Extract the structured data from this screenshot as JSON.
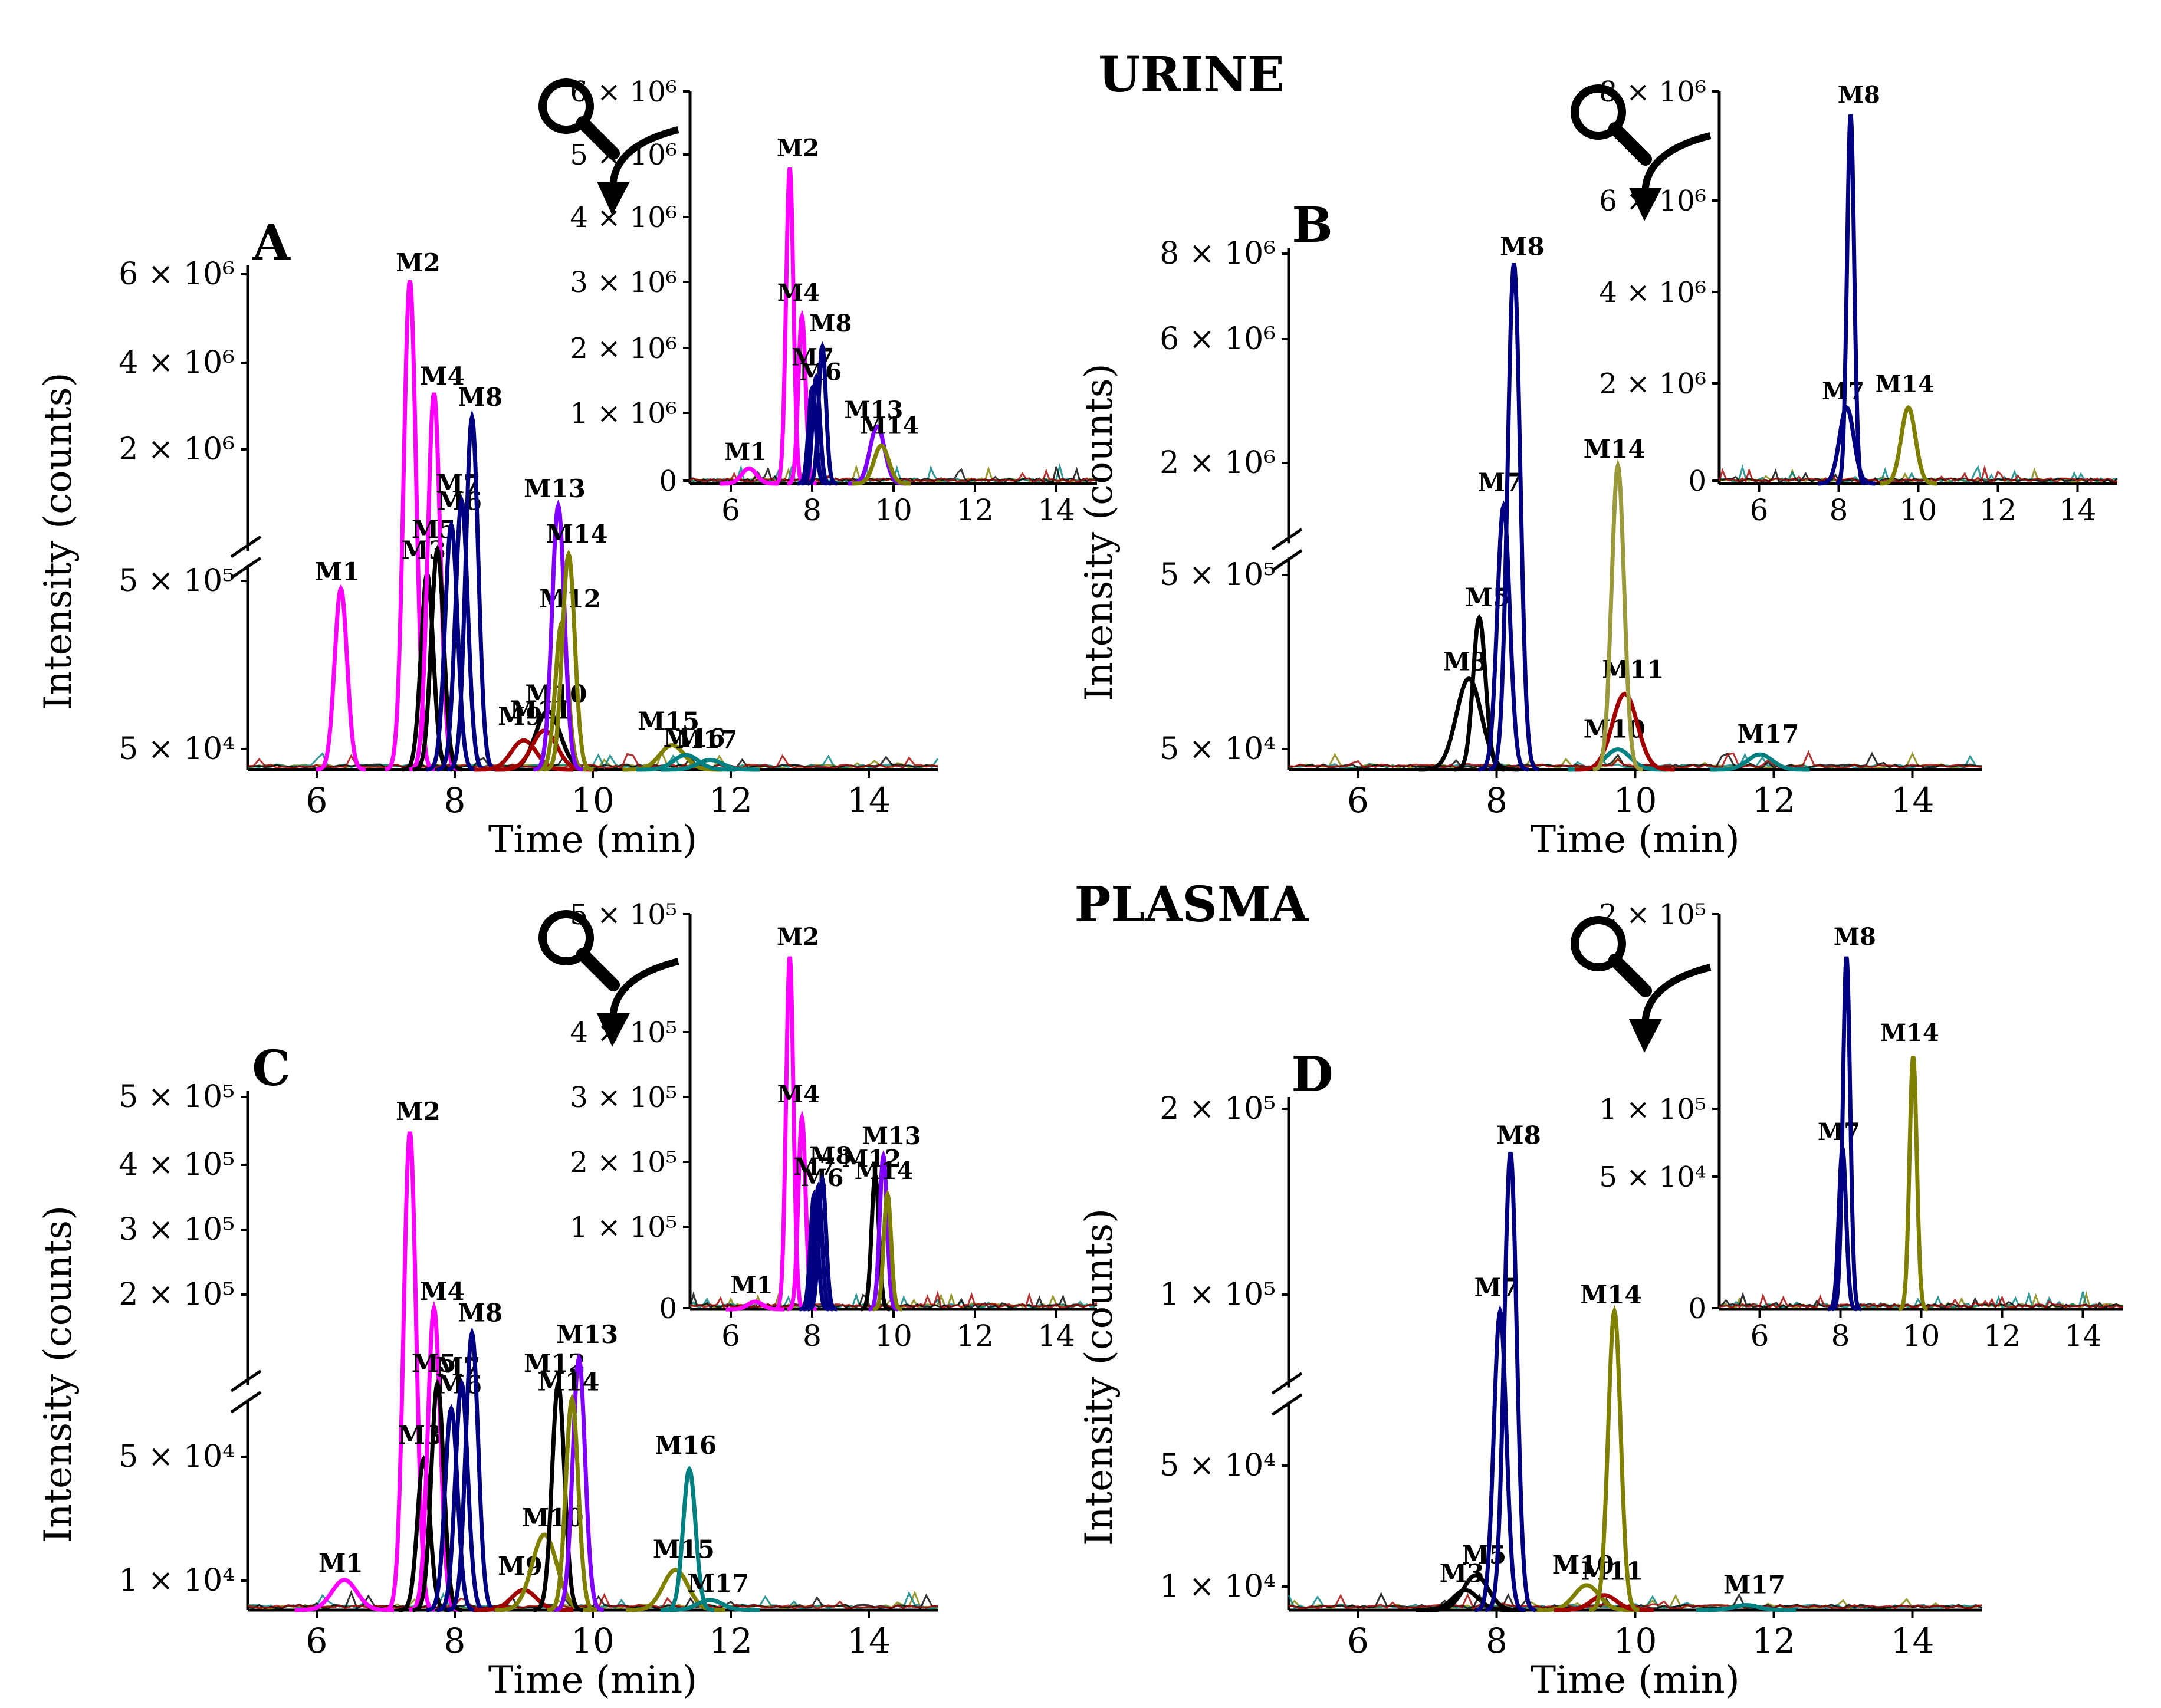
{
  "figure": {
    "section_titles": [
      "URINE",
      "PLASMA"
    ],
    "x_label": "Time (min)",
    "y_label": "Intensity (counts)",
    "colors": {
      "magenta": "#ff00ff",
      "navy": "#000080",
      "black": "#000000",
      "teal": "#008080",
      "purple": "#7f00ff",
      "olive": "#808000",
      "olive_light": "#9a9a3c",
      "maroon": "#a00000",
      "green": "#2e8b57"
    },
    "icons": [
      "magnifier-icon",
      "curved-arrow-icon"
    ]
  },
  "chart_data": [
    {
      "id": "A",
      "type": "line",
      "panel_label": "A",
      "xlabel": "Time (min)",
      "ylabel": "Intensity (counts)",
      "xlim": [
        5,
        15
      ],
      "x_ticks": [
        "6",
        "8",
        "10",
        "12",
        "14"
      ],
      "y_ticks": [
        "5 × 10⁴",
        "5 × 10⁵",
        "2 × 10⁶",
        "4 × 10⁶",
        "6 × 10⁶"
      ],
      "axis_break": true,
      "peaks": [
        {
          "label": "M1",
          "rt": 6.35,
          "color": "magenta",
          "height": 0.37
        },
        {
          "label": "M2",
          "rt": 7.35,
          "color": "magenta",
          "height": 1.0
        },
        {
          "label": "M3",
          "rt": 7.6,
          "color": "black",
          "height": 0.4
        },
        {
          "label": "M4",
          "rt": 7.7,
          "color": "magenta",
          "height": 0.77
        },
        {
          "label": "M5",
          "rt": 7.75,
          "color": "black",
          "height": 0.45
        },
        {
          "label": "M6",
          "rt": 7.95,
          "color": "navy",
          "height": 0.5
        },
        {
          "label": "M7",
          "rt": 8.1,
          "color": "navy",
          "height": 0.55
        },
        {
          "label": "M8",
          "rt": 8.25,
          "color": "navy",
          "height": 0.72
        },
        {
          "label": "M9",
          "rt": 9.0,
          "color": "maroon",
          "height": 0.06
        },
        {
          "label": "M10",
          "rt": 9.35,
          "color": "black",
          "height": 0.12
        },
        {
          "label": "M11",
          "rt": 9.3,
          "color": "maroon",
          "height": 0.08
        },
        {
          "label": "M12",
          "rt": 9.55,
          "color": "olive",
          "height": 0.3
        },
        {
          "label": "M13",
          "rt": 9.5,
          "color": "purple",
          "height": 0.54
        },
        {
          "label": "M14",
          "rt": 9.65,
          "color": "olive",
          "height": 0.44
        },
        {
          "label": "M15",
          "rt": 11.15,
          "color": "olive",
          "height": 0.05
        },
        {
          "label": "M16",
          "rt": 11.35,
          "color": "teal",
          "height": 0.03
        },
        {
          "label": "M17",
          "rt": 11.7,
          "color": "teal",
          "height": 0.02
        }
      ]
    },
    {
      "id": "A-inset",
      "type": "line",
      "xlim": [
        5,
        15
      ],
      "x_ticks": [
        "6",
        "8",
        "10",
        "12",
        "14"
      ],
      "y_ticks": [
        "0",
        "1 × 10⁶",
        "2 × 10⁶",
        "3 × 10⁶",
        "4 × 10⁶",
        "5 × 10⁶",
        "6 × 10⁶"
      ],
      "peaks": [
        {
          "label": "M1",
          "rt": 6.45,
          "color": "magenta",
          "height": 0.04
        },
        {
          "label": "M2",
          "rt": 7.45,
          "color": "magenta",
          "height": 0.83
        },
        {
          "label": "M4",
          "rt": 7.75,
          "color": "magenta",
          "height": 0.44
        },
        {
          "label": "M6",
          "rt": 8.0,
          "color": "navy",
          "height": 0.25
        },
        {
          "label": "M7",
          "rt": 8.1,
          "color": "navy",
          "height": 0.28
        },
        {
          "label": "M8",
          "rt": 8.25,
          "color": "navy",
          "height": 0.36
        },
        {
          "label": "M13",
          "rt": 9.6,
          "color": "purple",
          "height": 0.15
        },
        {
          "label": "M14",
          "rt": 9.7,
          "color": "olive",
          "height": 0.1
        }
      ]
    },
    {
      "id": "B",
      "type": "line",
      "panel_label": "B",
      "xlabel": "Time (min)",
      "ylabel": "Intensity (counts)",
      "xlim": [
        5,
        15
      ],
      "x_ticks": [
        "6",
        "8",
        "10",
        "12",
        "14"
      ],
      "y_ticks": [
        "5 × 10⁴",
        "5 × 10⁵",
        "2 × 10⁶",
        "6 × 10⁶",
        "8 × 10⁶"
      ],
      "axis_break": true,
      "peaks": [
        {
          "label": "M3",
          "rt": 7.6,
          "color": "black",
          "height": 0.18
        },
        {
          "label": "M5",
          "rt": 7.75,
          "color": "black",
          "height": 0.3
        },
        {
          "label": "M7",
          "rt": 8.1,
          "color": "navy",
          "height": 0.52
        },
        {
          "label": "M8",
          "rt": 8.25,
          "color": "navy",
          "height": 1.0
        },
        {
          "label": "M10",
          "rt": 9.75,
          "color": "teal",
          "height": 0.04
        },
        {
          "label": "M11",
          "rt": 9.85,
          "color": "maroon",
          "height": 0.15
        },
        {
          "label": "M14",
          "rt": 9.75,
          "color": "olive_light",
          "height": 0.6
        },
        {
          "label": "M17",
          "rt": 11.8,
          "color": "teal",
          "height": 0.03
        }
      ]
    },
    {
      "id": "B-inset",
      "type": "line",
      "xlim": [
        5,
        15
      ],
      "x_ticks": [
        "6",
        "8",
        "10",
        "12",
        "14"
      ],
      "y_ticks": [
        "0",
        "2 × 10⁶",
        "4 × 10⁶",
        "6 × 10⁶",
        "8 × 10⁶"
      ],
      "peaks": [
        {
          "label": "M7",
          "rt": 8.2,
          "color": "navy",
          "height": 0.2
        },
        {
          "label": "M8",
          "rt": 8.3,
          "color": "navy",
          "height": 0.97
        },
        {
          "label": "M14",
          "rt": 9.75,
          "color": "olive",
          "height": 0.2
        }
      ]
    },
    {
      "id": "C",
      "type": "line",
      "panel_label": "C",
      "xlabel": "Time (min)",
      "ylabel": "Intensity (counts)",
      "xlim": [
        5,
        15
      ],
      "x_ticks": [
        "6",
        "8",
        "10",
        "12",
        "14"
      ],
      "y_ticks": [
        "1 × 10⁴",
        "5 × 10⁴",
        "2 × 10⁵",
        "3 × 10⁵",
        "4 × 10⁵",
        "5 × 10⁵"
      ],
      "axis_break": true,
      "peaks": [
        {
          "label": "M1",
          "rt": 6.4,
          "color": "magenta",
          "height": 0.06
        },
        {
          "label": "M2",
          "rt": 7.35,
          "color": "magenta",
          "height": 0.95
        },
        {
          "label": "M3",
          "rt": 7.55,
          "color": "black",
          "height": 0.3
        },
        {
          "label": "M4",
          "rt": 7.7,
          "color": "magenta",
          "height": 0.6
        },
        {
          "label": "M5",
          "rt": 7.75,
          "color": "black",
          "height": 0.45
        },
        {
          "label": "M6",
          "rt": 7.95,
          "color": "navy",
          "height": 0.4
        },
        {
          "label": "M7",
          "rt": 8.1,
          "color": "navy",
          "height": 0.45
        },
        {
          "label": "M8",
          "rt": 8.25,
          "color": "navy",
          "height": 0.55
        },
        {
          "label": "M9",
          "rt": 9.0,
          "color": "maroon",
          "height": 0.04
        },
        {
          "label": "M10",
          "rt": 9.3,
          "color": "olive",
          "height": 0.15
        },
        {
          "label": "M12",
          "rt": 9.5,
          "color": "black",
          "height": 0.45
        },
        {
          "label": "M13",
          "rt": 9.8,
          "color": "purple",
          "height": 0.5
        },
        {
          "label": "M14",
          "rt": 9.7,
          "color": "olive",
          "height": 0.42
        },
        {
          "label": "M15",
          "rt": 11.2,
          "color": "olive",
          "height": 0.08
        },
        {
          "label": "M16",
          "rt": 11.4,
          "color": "teal",
          "height": 0.28
        },
        {
          "label": "M17",
          "rt": 11.7,
          "color": "teal",
          "height": 0.02
        }
      ]
    },
    {
      "id": "C-inset",
      "type": "line",
      "xlim": [
        5,
        15
      ],
      "x_ticks": [
        "6",
        "8",
        "10",
        "12",
        "14"
      ],
      "y_ticks": [
        "0",
        "1 × 10⁵",
        "2 × 10⁵",
        "3 × 10⁵",
        "4 × 10⁵",
        "5 × 10⁵"
      ],
      "peaks": [
        {
          "label": "M1",
          "rt": 6.6,
          "color": "magenta",
          "height": 0.02
        },
        {
          "label": "M2",
          "rt": 7.45,
          "color": "magenta",
          "height": 0.92
        },
        {
          "label": "M4",
          "rt": 7.75,
          "color": "magenta",
          "height": 0.5
        },
        {
          "label": "M6",
          "rt": 8.05,
          "color": "navy",
          "height": 0.3
        },
        {
          "label": "M7",
          "rt": 8.15,
          "color": "navy",
          "height": 0.32
        },
        {
          "label": "M8",
          "rt": 8.25,
          "color": "navy",
          "height": 0.34
        },
        {
          "label": "M12",
          "rt": 9.55,
          "color": "black",
          "height": 0.35
        },
        {
          "label": "M13",
          "rt": 9.75,
          "color": "purple",
          "height": 0.4
        },
        {
          "label": "M14",
          "rt": 9.85,
          "color": "olive",
          "height": 0.3
        }
      ]
    },
    {
      "id": "D",
      "type": "line",
      "panel_label": "D",
      "xlabel": "Time (min)",
      "ylabel": "Intensity (counts)",
      "xlim": [
        5,
        15
      ],
      "x_ticks": [
        "6",
        "8",
        "10",
        "12",
        "14"
      ],
      "y_ticks": [
        "1 × 10⁴",
        "5 × 10⁴",
        "1 × 10⁵",
        "2 × 10⁵"
      ],
      "axis_break": true,
      "peaks": [
        {
          "label": "M3",
          "rt": 7.55,
          "color": "black",
          "height": 0.04
        },
        {
          "label": "M5",
          "rt": 7.7,
          "color": "black",
          "height": 0.07
        },
        {
          "label": "M7",
          "rt": 8.05,
          "color": "navy",
          "height": 0.6
        },
        {
          "label": "M8",
          "rt": 8.2,
          "color": "navy",
          "height": 0.92
        },
        {
          "label": "M10",
          "rt": 9.3,
          "color": "olive",
          "height": 0.05
        },
        {
          "label": "M11",
          "rt": 9.55,
          "color": "maroon",
          "height": 0.03
        },
        {
          "label": "M14",
          "rt": 9.7,
          "color": "olive",
          "height": 0.6
        },
        {
          "label": "M17",
          "rt": 11.6,
          "color": "teal",
          "height": 0.01
        }
      ]
    },
    {
      "id": "D-inset",
      "type": "line",
      "xlim": [
        5,
        15
      ],
      "x_ticks": [
        "6",
        "8",
        "10",
        "12",
        "14"
      ],
      "y_ticks": [
        "0",
        "5 × 10⁴",
        "1 × 10⁵",
        "2 × 10⁵"
      ],
      "peaks": [
        {
          "label": "M7",
          "rt": 8.05,
          "color": "navy",
          "height": 0.42
        },
        {
          "label": "M8",
          "rt": 8.15,
          "color": "navy",
          "height": 0.92
        },
        {
          "label": "M14",
          "rt": 9.8,
          "color": "olive",
          "height": 0.66
        }
      ]
    }
  ]
}
